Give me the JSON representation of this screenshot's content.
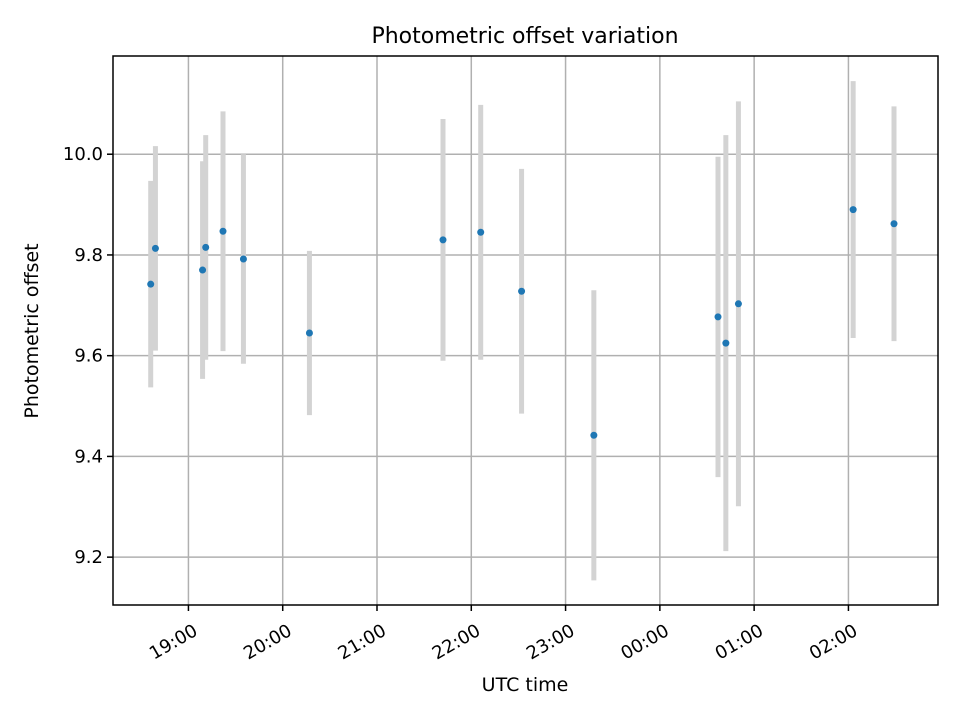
{
  "chart_data": {
    "type": "scatter",
    "title": "Photometric offset variation",
    "xlabel": "UTC time",
    "ylabel": "Photometric offset",
    "x_axis": {
      "type": "time",
      "range": [
        "18:12",
        "02:57"
      ],
      "ticks": [
        "19:00",
        "20:00",
        "21:00",
        "22:00",
        "23:00",
        "00:00",
        "01:00",
        "02:00"
      ],
      "tick_label_rotation": "30deg"
    },
    "y_axis": {
      "range": [
        9.105,
        10.195
      ],
      "ticks": [
        "9.2",
        "9.4",
        "9.6",
        "9.8",
        "10.0"
      ]
    },
    "grid": true,
    "colors": {
      "point": "#1f77b4",
      "errorbar": "#d3d3d3",
      "grid": "#b0b0b0"
    },
    "series": [
      {
        "x": [
          "18:36",
          "18:39",
          "19:09",
          "19:11",
          "19:22",
          "19:35",
          "20:17",
          "21:42",
          "22:06",
          "22:32",
          "23:18",
          "00:37",
          "00:42",
          "00:50",
          "02:03",
          "02:29"
        ],
        "y": [
          9.742,
          9.813,
          9.77,
          9.815,
          9.847,
          9.792,
          9.645,
          9.83,
          9.845,
          9.728,
          9.442,
          9.677,
          9.625,
          9.703,
          9.89,
          9.862
        ],
        "yerr": [
          0.205,
          0.203,
          0.216,
          0.223,
          0.238,
          0.208,
          0.163,
          0.24,
          0.253,
          0.243,
          0.288,
          0.318,
          0.413,
          0.402,
          0.255,
          0.233
        ]
      }
    ]
  }
}
